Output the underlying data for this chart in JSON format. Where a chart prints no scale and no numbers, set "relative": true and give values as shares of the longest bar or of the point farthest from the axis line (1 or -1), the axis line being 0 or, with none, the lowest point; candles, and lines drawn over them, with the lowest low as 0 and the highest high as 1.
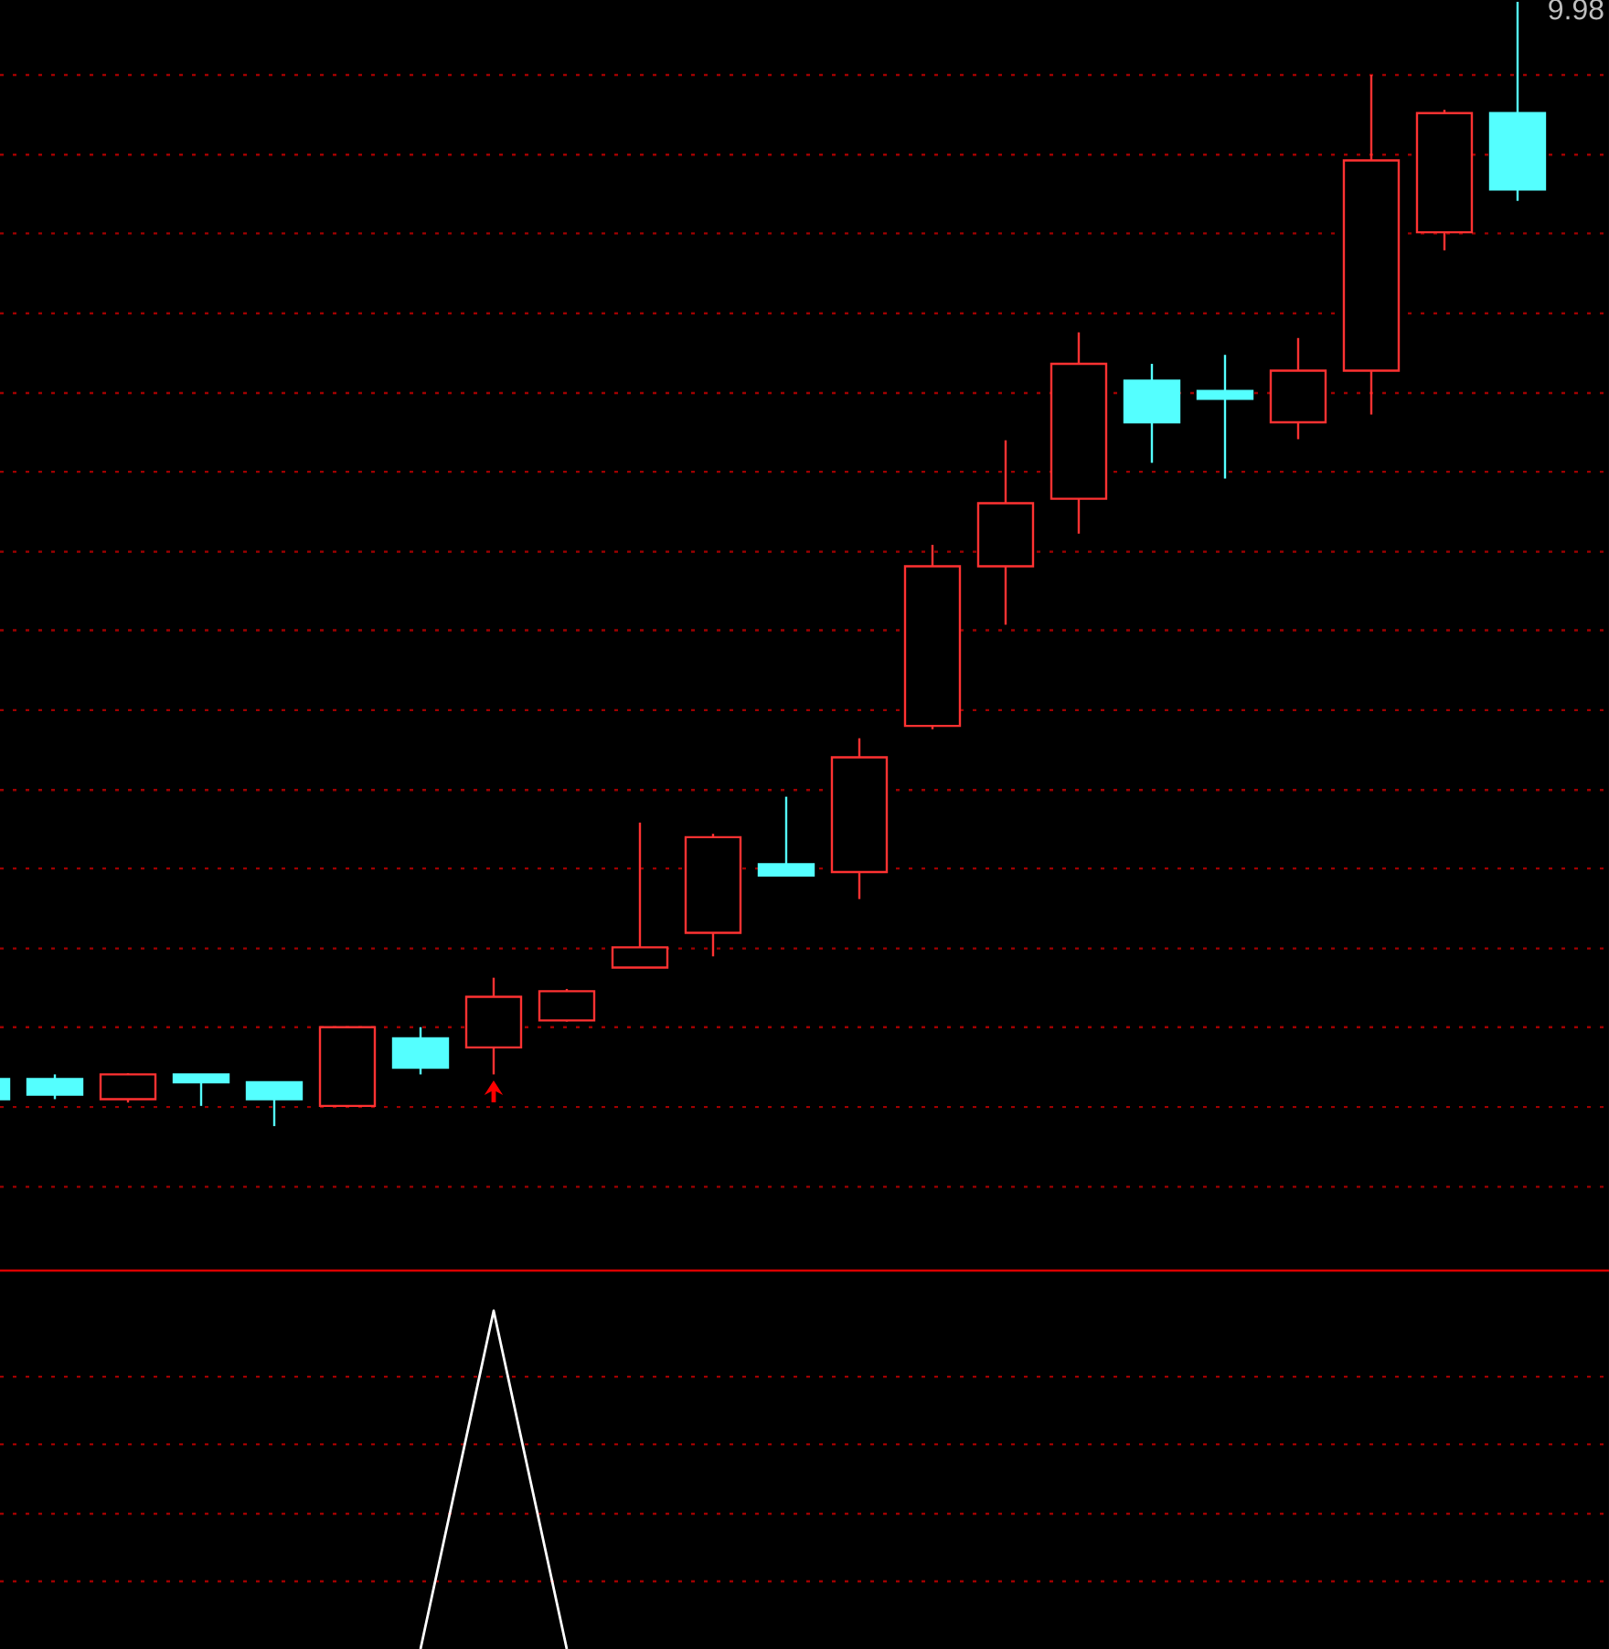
{
  "chart_data": [
    {
      "type": "candlestick",
      "relative": true,
      "annotations": [
        "9.98"
      ],
      "categories": [
        null,
        null,
        null,
        null,
        null,
        null,
        null,
        null,
        null,
        null,
        null,
        null,
        null,
        null,
        null,
        null,
        null,
        null,
        null,
        null,
        null,
        null
      ],
      "ohlc": [
        [
          0.042,
          0.042,
          0.024,
          0.024
        ],
        [
          0.042,
          0.046,
          0.024,
          0.028
        ],
        [
          0.024,
          0.047,
          0.021,
          0.046
        ],
        [
          0.046,
          0.046,
          0.018,
          0.039
        ],
        [
          0.039,
          0.039,
          0.0,
          0.024
        ],
        [
          0.018,
          0.088,
          0.018,
          0.088
        ],
        [
          0.078,
          0.088,
          0.046,
          0.052
        ],
        [
          0.07,
          0.132,
          0.046,
          0.115
        ],
        [
          0.094,
          0.122,
          0.093,
          0.12
        ],
        [
          0.141,
          0.27,
          0.141,
          0.159
        ],
        [
          0.172,
          0.26,
          0.151,
          0.257
        ],
        [
          0.233,
          0.293,
          0.223,
          0.223
        ],
        [
          0.226,
          0.345,
          0.202,
          0.328
        ],
        [
          0.356,
          0.517,
          0.353,
          0.498
        ],
        [
          0.498,
          0.61,
          0.446,
          0.554
        ],
        [
          0.558,
          0.706,
          0.527,
          0.678
        ],
        [
          0.663,
          0.678,
          0.59,
          0.626
        ],
        [
          0.654,
          0.686,
          0.576,
          0.647
        ],
        [
          0.626,
          0.701,
          0.611,
          0.672
        ],
        [
          0.672,
          0.935,
          0.633,
          0.859
        ],
        [
          0.795,
          0.904,
          0.779,
          0.901
        ],
        [
          0.901,
          1.0,
          0.823,
          0.833
        ]
      ],
      "colors": [
        "#54ffff",
        "#54ffff",
        "#ff3232",
        "#54ffff",
        "#54ffff",
        "#ff3232",
        "#54ffff",
        "#ff3232",
        "#ff3232",
        "#ff3232",
        "#ff3232",
        "#54ffff",
        "#ff3232",
        "#ff3232",
        "#ff3232",
        "#ff3232",
        "#54ffff",
        "#54ffff",
        "#ff3232",
        "#ff3232",
        "#ff3232",
        "#54ffff"
      ],
      "ref_lines": [
        {
          "axis": "y",
          "value": 0.935,
          "color": "#a00000",
          "line_style": "dotted"
        },
        {
          "axis": "y",
          "value": 0.864,
          "color": "#a00000",
          "line_style": "dotted"
        },
        {
          "axis": "y",
          "value": 0.794,
          "color": "#a00000",
          "line_style": "dotted"
        },
        {
          "axis": "y",
          "value": 0.723,
          "color": "#a00000",
          "line_style": "dotted"
        },
        {
          "axis": "y",
          "value": 0.652,
          "color": "#a00000",
          "line_style": "dotted"
        },
        {
          "axis": "y",
          "value": 0.582,
          "color": "#a00000",
          "line_style": "dotted"
        },
        {
          "axis": "y",
          "value": 0.511,
          "color": "#a00000",
          "line_style": "dotted"
        },
        {
          "axis": "y",
          "value": 0.441,
          "color": "#a00000",
          "line_style": "dotted"
        },
        {
          "axis": "y",
          "value": 0.37,
          "color": "#a00000",
          "line_style": "dotted"
        },
        {
          "axis": "y",
          "value": 0.299,
          "color": "#a00000",
          "line_style": "dotted"
        },
        {
          "axis": "y",
          "value": 0.229,
          "color": "#a00000",
          "line_style": "dotted"
        },
        {
          "axis": "y",
          "value": 0.158,
          "color": "#a00000",
          "line_style": "dotted"
        },
        {
          "axis": "y",
          "value": 0.088,
          "color": "#a00000",
          "line_style": "dotted"
        },
        {
          "axis": "y",
          "value": 0.017,
          "color": "#a00000",
          "line_style": "dotted"
        },
        {
          "axis": "y",
          "value": -0.054,
          "color": "#a00000",
          "line_style": "dotted"
        }
      ]
    },
    {
      "type": "line",
      "relative": true,
      "categories": [
        null,
        null,
        null,
        null,
        null,
        null,
        null,
        null,
        null,
        null,
        null,
        null,
        null,
        null,
        null,
        null,
        null,
        null,
        null,
        null,
        null,
        null
      ],
      "series": [
        {
          "color": "#ffffff",
          "values": [
            null,
            null,
            null,
            null,
            null,
            null,
            0,
            1,
            0,
            null,
            null,
            null,
            null,
            null,
            null,
            null,
            null,
            null,
            null,
            null,
            null,
            null
          ]
        }
      ],
      "ref_lines": [
        {
          "axis": "y",
          "value": 0.805,
          "color": "#a00000",
          "line_style": "dotted"
        },
        {
          "axis": "y",
          "value": 0.605,
          "color": "#a00000",
          "line_style": "dotted"
        },
        {
          "axis": "y",
          "value": 0.4,
          "color": "#a00000",
          "line_style": "dotted"
        },
        {
          "axis": "y",
          "value": 0.2,
          "color": "#a00000",
          "line_style": "dotted"
        }
      ]
    }
  ]
}
